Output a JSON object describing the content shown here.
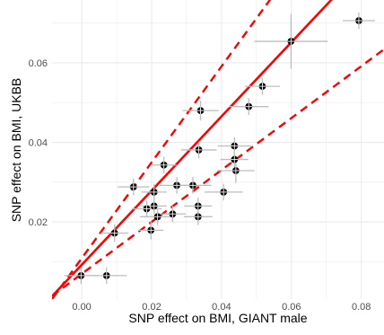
{
  "chart_data": {
    "type": "scatter",
    "xlabel": "SNP effect on BMI, GIANT male",
    "ylabel": "SNP effect on BMI, UKBB",
    "xlim": [
      -0.0085,
      0.0865
    ],
    "ylim": [
      0.0006,
      0.0758
    ],
    "xticks": [
      0.0,
      0.02,
      0.04,
      0.06,
      0.08
    ],
    "yticks": [
      0.02,
      0.04,
      0.06
    ],
    "xtick_labels": [
      "0.00",
      "0.02",
      "0.04",
      "0.06",
      "0.08"
    ],
    "ytick_labels": [
      "0.02",
      "0.04",
      "0.06"
    ],
    "grid": true,
    "points": [
      {
        "x": -0.0002,
        "y": 0.0065,
        "xerr": 0.0048,
        "yerr": 0.0021
      },
      {
        "x": 0.0071,
        "y": 0.0065,
        "xerr": 0.0058,
        "yerr": 0.0021
      },
      {
        "x": 0.0094,
        "y": 0.0172,
        "xerr": 0.004,
        "yerr": 0.0022
      },
      {
        "x": 0.0148,
        "y": 0.0288,
        "xerr": 0.0045,
        "yerr": 0.0021
      },
      {
        "x": 0.0186,
        "y": 0.0233,
        "xerr": 0.0043,
        "yerr": 0.0021
      },
      {
        "x": 0.0198,
        "y": 0.0179,
        "xerr": 0.0036,
        "yerr": 0.0023
      },
      {
        "x": 0.0207,
        "y": 0.0275,
        "xerr": 0.0036,
        "yerr": 0.0021
      },
      {
        "x": 0.0207,
        "y": 0.024,
        "xerr": 0.0036,
        "yerr": 0.0021
      },
      {
        "x": 0.0217,
        "y": 0.0213,
        "xerr": 0.005,
        "yerr": 0.0021
      },
      {
        "x": 0.0235,
        "y": 0.0343,
        "xerr": 0.0036,
        "yerr": 0.0021
      },
      {
        "x": 0.026,
        "y": 0.022,
        "xerr": 0.0038,
        "yerr": 0.0021
      },
      {
        "x": 0.0272,
        "y": 0.0292,
        "xerr": 0.0049,
        "yerr": 0.0021
      },
      {
        "x": 0.0318,
        "y": 0.0292,
        "xerr": 0.0053,
        "yerr": 0.0021
      },
      {
        "x": 0.0333,
        "y": 0.0213,
        "xerr": 0.0041,
        "yerr": 0.0021
      },
      {
        "x": 0.0333,
        "y": 0.024,
        "xerr": 0.004,
        "yerr": 0.0021
      },
      {
        "x": 0.0335,
        "y": 0.0381,
        "xerr": 0.0051,
        "yerr": 0.0021
      },
      {
        "x": 0.034,
        "y": 0.048,
        "xerr": 0.0052,
        "yerr": 0.0025
      },
      {
        "x": 0.0406,
        "y": 0.0275,
        "xerr": 0.0055,
        "yerr": 0.0021
      },
      {
        "x": 0.0437,
        "y": 0.0391,
        "xerr": 0.0048,
        "yerr": 0.0022
      },
      {
        "x": 0.0437,
        "y": 0.0357,
        "xerr": 0.004,
        "yerr": 0.0021
      },
      {
        "x": 0.0441,
        "y": 0.0329,
        "xerr": 0.0054,
        "yerr": 0.0031
      },
      {
        "x": 0.0478,
        "y": 0.049,
        "xerr": 0.0057,
        "yerr": 0.0021
      },
      {
        "x": 0.0517,
        "y": 0.0541,
        "xerr": 0.005,
        "yerr": 0.0021
      },
      {
        "x": 0.0599,
        "y": 0.0654,
        "xerr": 0.0105,
        "yerr": 0.0069
      },
      {
        "x": 0.0793,
        "y": 0.0706,
        "xerr": 0.0046,
        "yerr": 0.0021
      }
    ],
    "fit_lines": [
      {
        "style": "solid",
        "color": "#ff0000",
        "x": [
          -0.0085,
          0.0865
        ],
        "y": [
          0.0013,
          0.0899
        ]
      },
      {
        "style": "dashed",
        "color": "#ff0000",
        "x": [
          -0.0085,
          0.0865
        ],
        "y": [
          0.0006,
          0.1152
        ]
      },
      {
        "style": "dashed",
        "color": "#ff0000",
        "x": [
          -0.0085,
          0.0865
        ],
        "y": [
          0.0014,
          0.0634
        ]
      }
    ],
    "colors": {
      "fit": "#ff0000",
      "errorbar": "#bdbdbd",
      "point_fill": "#000000",
      "grid": "#ebebeb",
      "tick_text": "#4d4d4d"
    }
  }
}
